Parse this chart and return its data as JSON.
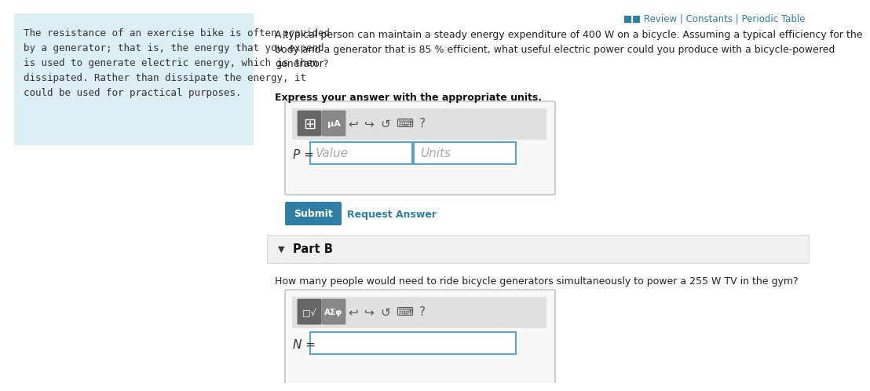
{
  "bg_color": "#ffffff",
  "sidebar_bg": "#ddeef5",
  "sidebar_text": "The resistance of an exercise bike is often provided\nby a generator; that is, the energy that you expend\nis used to generate electric energy, which is then\ndissipated. Rather than dissipate the energy, it\ncould be used for practical purposes.",
  "top_right_text": "■■ Review | Constants | Periodic Table",
  "main_question": "A typical person can maintain a steady energy expenditure of 400 W on a bicycle. Assuming a typical efficiency for the\nbody and a generator that is 85 % efficient, what useful electric power could you produce with a bicycle-powered\ngenerator?",
  "bold_instruction": "Express your answer with the appropriate units.",
  "submit_color": "#2e7fa3",
  "submit_text": "Submit",
  "request_answer_text": "Request Answer",
  "link_color": "#2e7fa3",
  "part_b_header": "Part B",
  "part_b_question": "How many people would need to ride bicycle generators simultaneously to power a 255 W TV in the gym?",
  "p_label": "P =",
  "n_label": "N =",
  "value_placeholder": "Value",
  "units_placeholder": "Units",
  "input_border_color": "#5ba3c9",
  "toolbar_bg": "#e0e0e0",
  "part_b_section_bg": "#f0f0f0",
  "font_size_main": 9,
  "font_size_sidebar": 9,
  "font_size_small": 8.5,
  "font_size_toolbar": 8
}
